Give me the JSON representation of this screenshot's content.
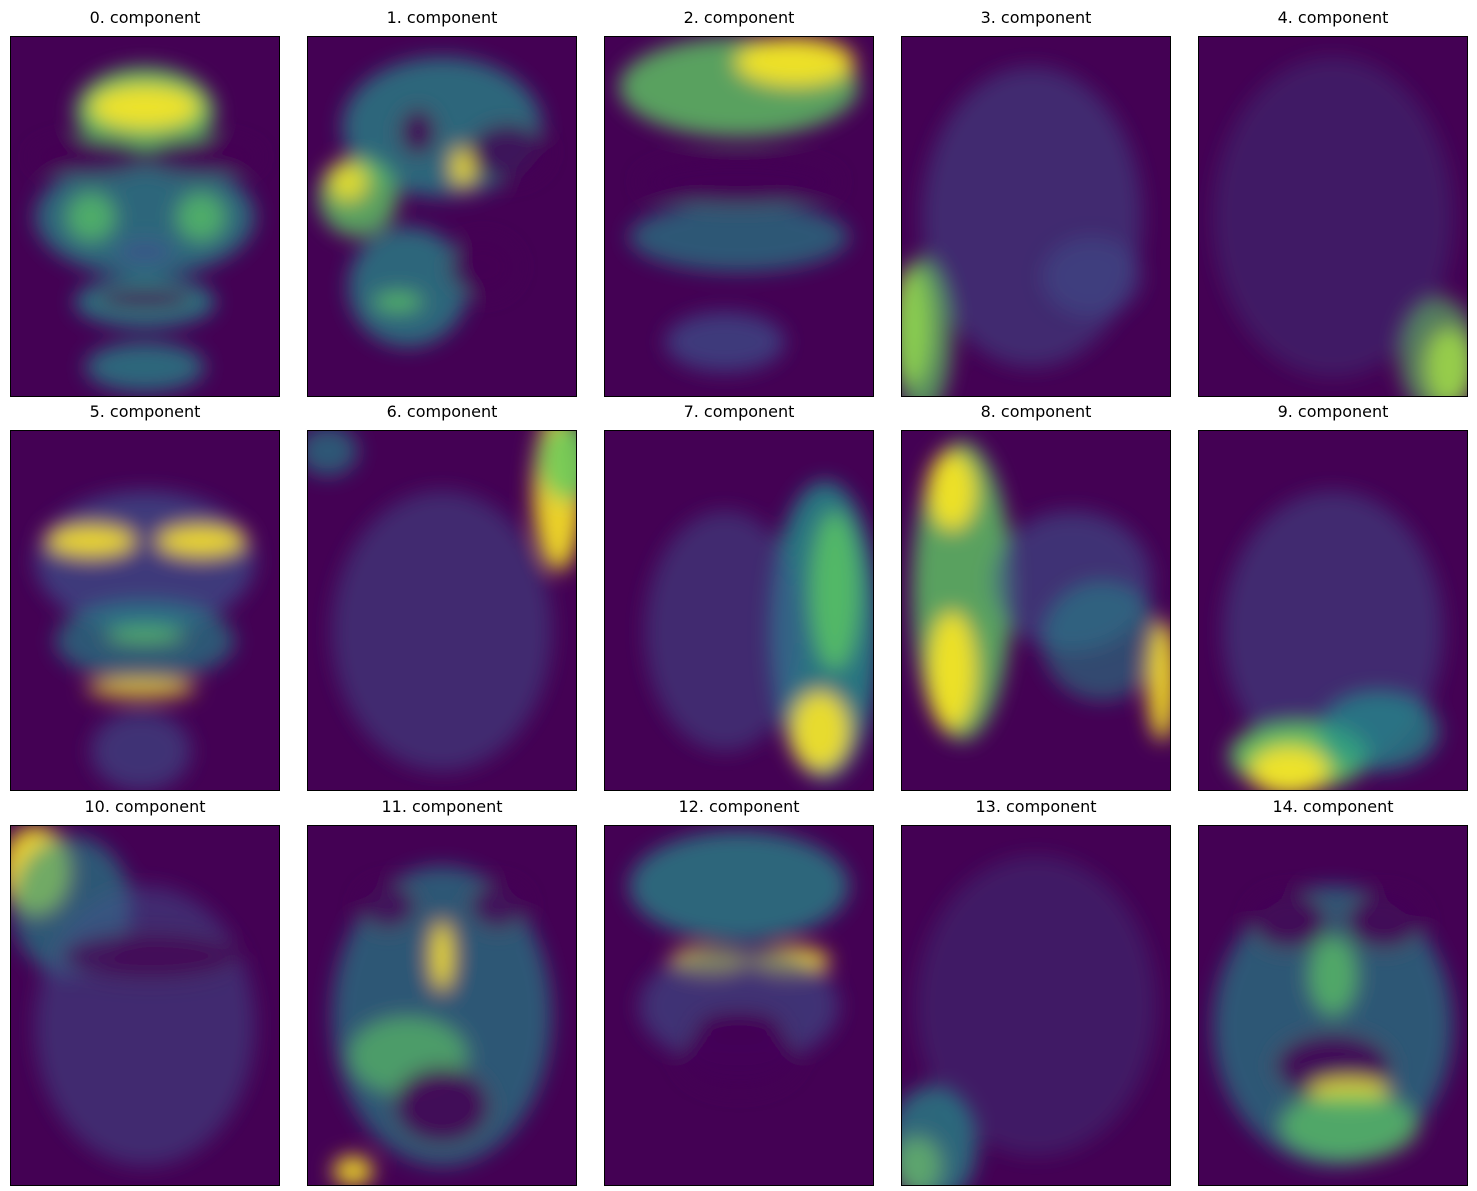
{
  "figure": {
    "panels": [
      {
        "title": "0. component",
        "description": "face-component-0"
      },
      {
        "title": "1. component",
        "description": "face-component-1"
      },
      {
        "title": "2. component",
        "description": "face-component-2"
      },
      {
        "title": "3. component",
        "description": "face-component-3"
      },
      {
        "title": "4. component",
        "description": "face-component-4"
      },
      {
        "title": "5. component",
        "description": "face-component-5"
      },
      {
        "title": "6. component",
        "description": "face-component-6"
      },
      {
        "title": "7. component",
        "description": "face-component-7"
      },
      {
        "title": "8. component",
        "description": "face-component-8"
      },
      {
        "title": "9. component",
        "description": "face-component-9"
      },
      {
        "title": "10. component",
        "description": "face-component-10"
      },
      {
        "title": "11. component",
        "description": "face-component-11"
      },
      {
        "title": "12. component",
        "description": "face-component-12"
      },
      {
        "title": "13. component",
        "description": "face-component-13"
      },
      {
        "title": "14. component",
        "description": "face-component-14"
      }
    ],
    "colormap": [
      "#440154",
      "#3b528b",
      "#21918c",
      "#5ec962",
      "#fde725"
    ]
  }
}
